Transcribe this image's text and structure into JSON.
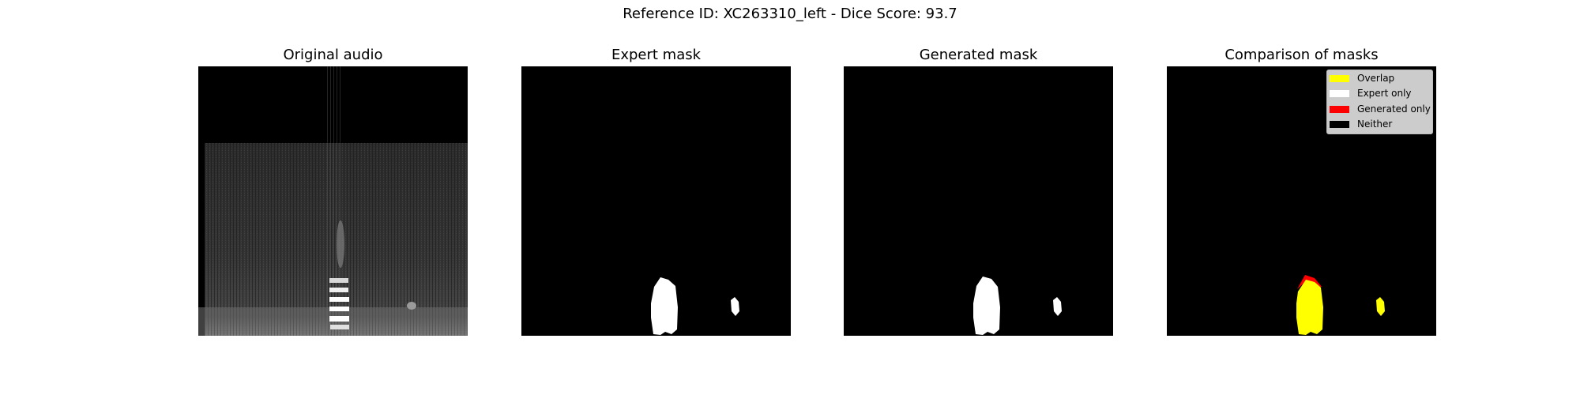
{
  "figure": {
    "suptitle": "Reference ID: XC263310_left - Dice Score: 93.7"
  },
  "panels": [
    {
      "title": "Original audio"
    },
    {
      "title": "Expert mask"
    },
    {
      "title": "Generated mask"
    },
    {
      "title": "Comparison of masks"
    }
  ],
  "legend": {
    "items": [
      {
        "label": "Overlap",
        "color": "#ffff00"
      },
      {
        "label": "Expert only",
        "color": "#ffffff"
      },
      {
        "label": "Generated only",
        "color": "#ff0000"
      },
      {
        "label": "Neither",
        "color": "#000000"
      }
    ]
  },
  "colors": {
    "background": "#000000",
    "mask": "#ffffff",
    "overlap": "#ffff00",
    "generated_only": "#ff0000"
  },
  "metrics": {
    "dice_score": 93.7
  }
}
